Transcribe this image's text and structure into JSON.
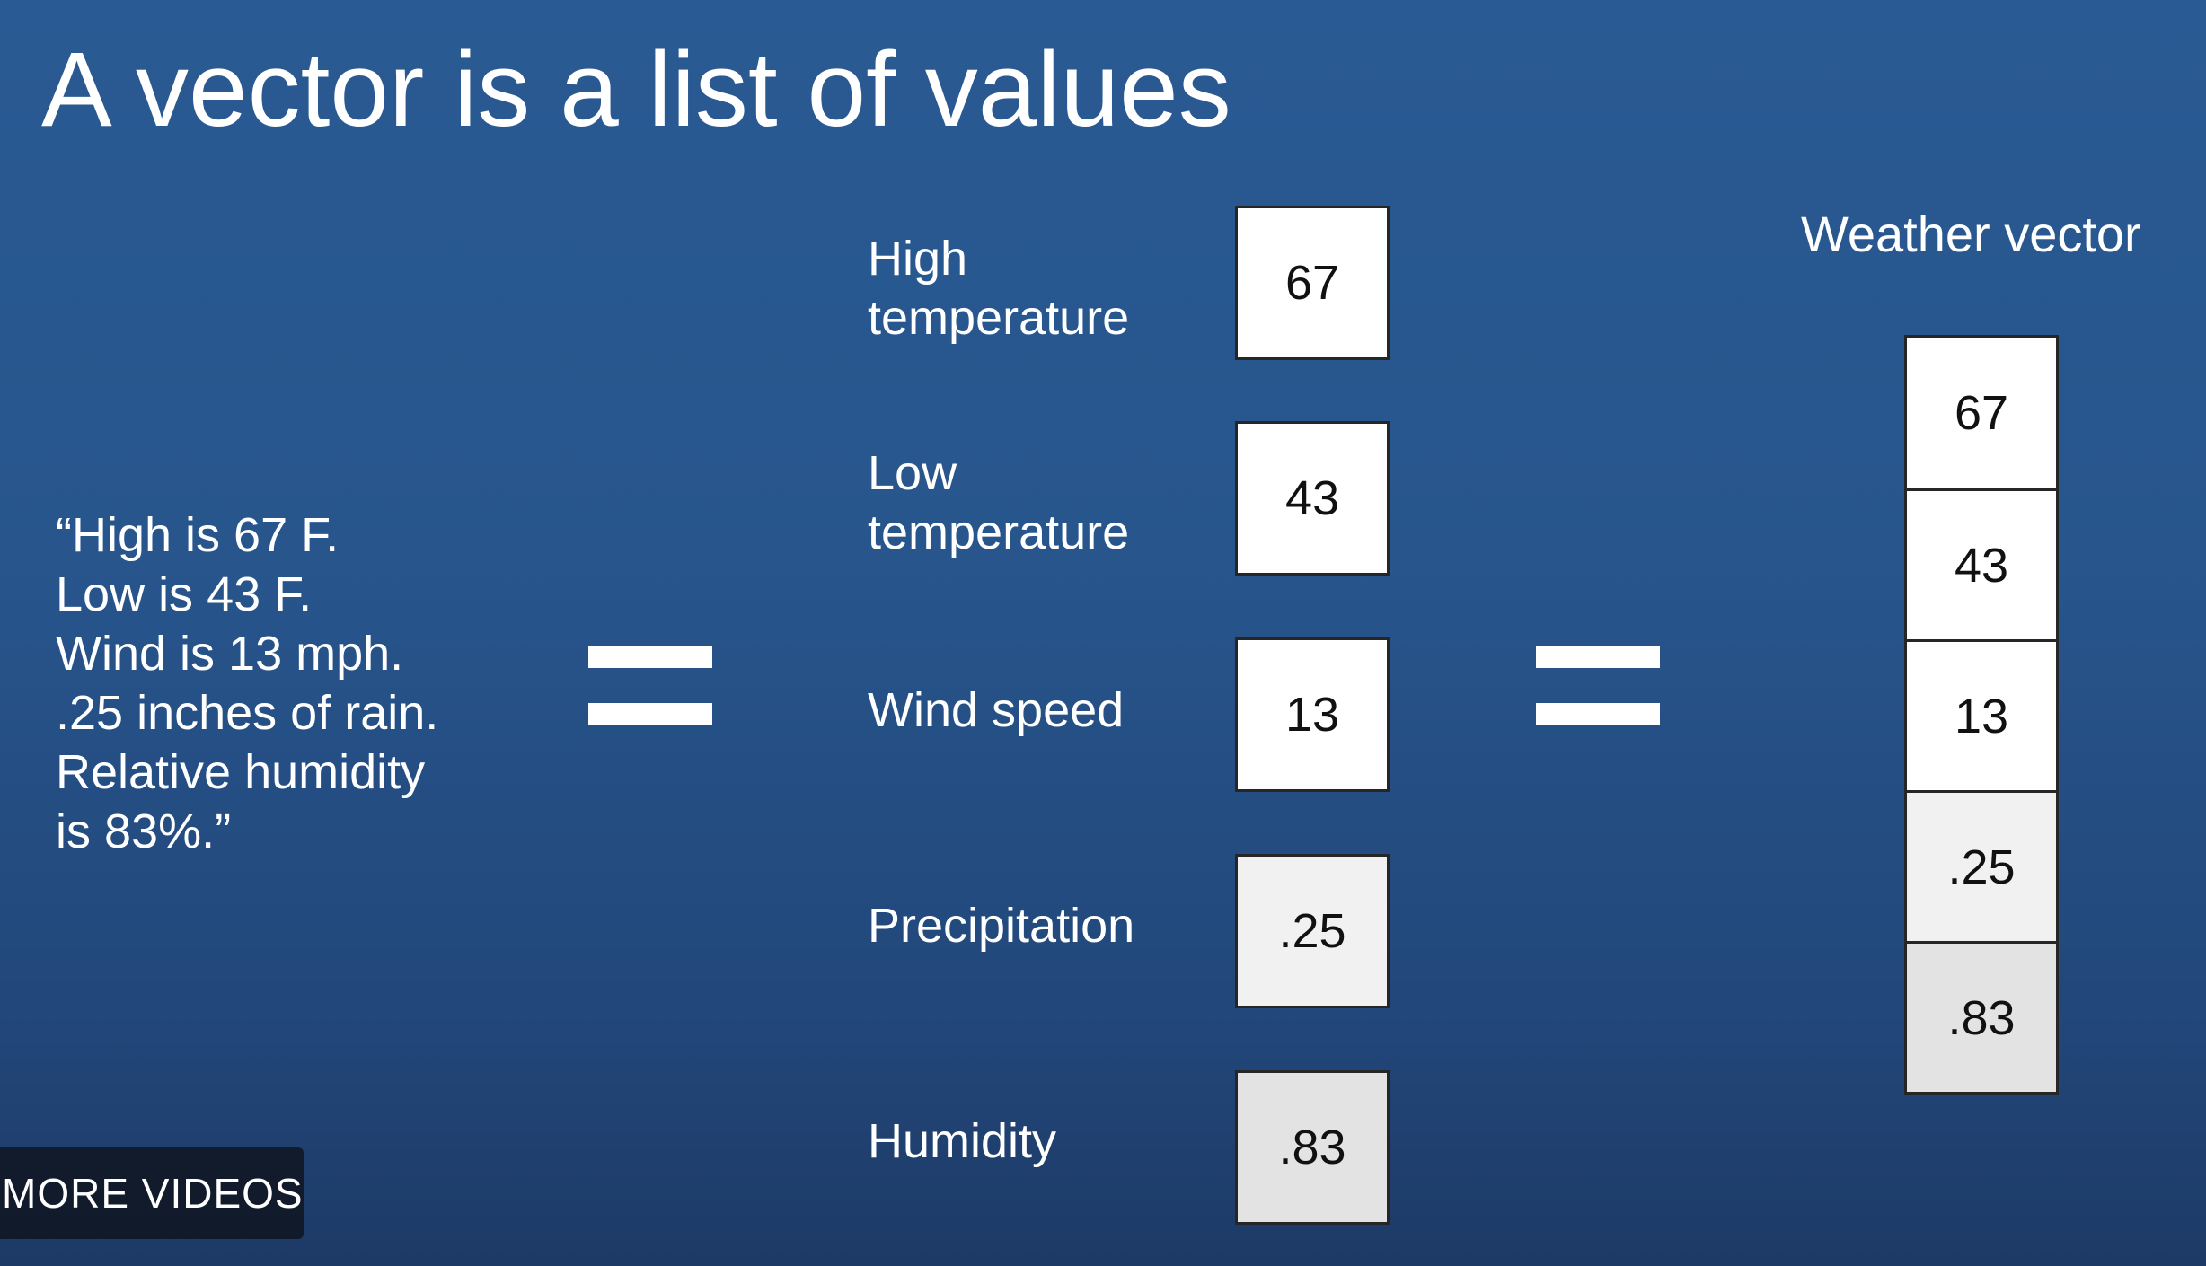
{
  "slide": {
    "title": "A vector is a list of values",
    "quote_lines": [
      "“High is 67 F.",
      "Low is 43 F.",
      "Wind is 13 mph.",
      ".25 inches of rain.",
      "Relative humidity",
      "is 83%.”"
    ],
    "features": [
      {
        "label_lines": [
          "High",
          "temperature"
        ],
        "value": "67",
        "fill": "#ffffff"
      },
      {
        "label_lines": [
          "Low",
          "temperature"
        ],
        "value": "43",
        "fill": "#ffffff"
      },
      {
        "label_lines": [
          "Wind speed"
        ],
        "value": "13",
        "fill": "#ffffff"
      },
      {
        "label_lines": [
          "Precipitation"
        ],
        "value": ".25",
        "fill": "#f1f1f1"
      },
      {
        "label_lines": [
          "Humidity"
        ],
        "value": ".83",
        "fill": "#e3e3e3"
      }
    ],
    "vector_title": "Weather vector",
    "vector_values": [
      "67",
      "43",
      "13",
      ".25",
      ".83"
    ],
    "vector_fills": [
      "#ffffff",
      "#ffffff",
      "#ffffff",
      "#f1f1f1",
      "#e3e3e3"
    ]
  },
  "overlay": {
    "more_videos_label": "MORE VIDEOS"
  },
  "colors": {
    "background_top": "#2a5a93",
    "background_bottom": "#1d3a66",
    "box_border": "#262626"
  }
}
